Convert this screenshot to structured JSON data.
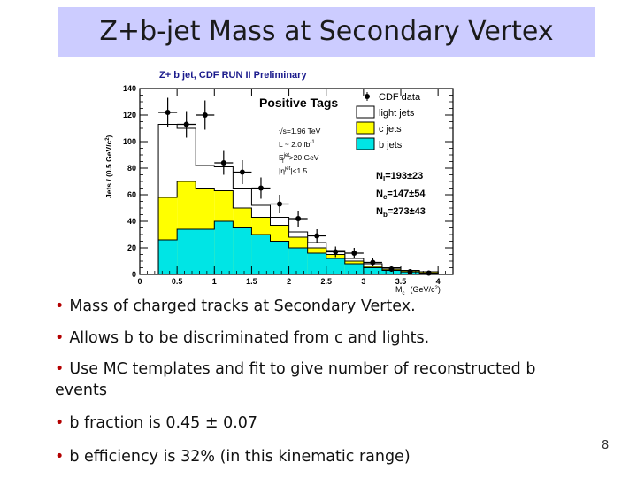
{
  "slide": {
    "title": "Z+b-jet Mass at Secondary Vertex",
    "page_number": "8",
    "bullet_color": "#b30000",
    "bullets": [
      "Mass of charged tracks at Secondary Vertex.",
      "Allows b to be discriminated from c and lights.",
      "Use MC templates and fit to give number of reconstructed b events",
      "b fraction is 0.45 ± 0.07",
      "b efficiency is 32% (in this kinematic range)"
    ]
  },
  "chart_data": {
    "type": "bar",
    "title": "Z+ b jet, CDF RUN II Preliminary",
    "panel_label": "Positive Tags",
    "xlabel": "M",
    "xlabel_sub": "c",
    "xlabel_unit": "(GeV/c",
    "xlabel_unit_sup": "2",
    "xlabel_unit_close": ")",
    "ylabel": "Jets / (0.5 GeV/c",
    "ylabel_sup": "2",
    "ylabel_close": ")",
    "xlim": [
      0,
      4.2
    ],
    "ylim": [
      0,
      140
    ],
    "xticks": [
      "0",
      "0.5",
      "1",
      "1.5",
      "2",
      "2.5",
      "3",
      "3.5",
      "4"
    ],
    "yticks": [
      "0",
      "20",
      "40",
      "60",
      "80",
      "100",
      "120",
      "140"
    ],
    "bin_edges": [
      0.25,
      0.5,
      0.75,
      1.0,
      1.25,
      1.5,
      1.75,
      2.0,
      2.25,
      2.5,
      2.75,
      3.0,
      3.25,
      3.5,
      3.75,
      4.0
    ],
    "series": [
      {
        "name": "light jets",
        "color": "#ffffff",
        "values": [
          113,
          110,
          82,
          81,
          65,
          52,
          43,
          32,
          24,
          18,
          12,
          8,
          5,
          3,
          2
        ]
      },
      {
        "name": "c jets",
        "color": "#ffff00",
        "values": [
          58,
          70,
          65,
          63,
          50,
          43,
          37,
          28,
          20,
          15,
          10,
          6,
          4,
          3,
          2
        ]
      },
      {
        "name": "b jets",
        "color": "#00e5e5",
        "values": [
          26,
          34,
          34,
          40,
          35,
          30,
          25,
          20,
          16,
          12,
          8,
          5,
          3,
          2,
          1
        ]
      }
    ],
    "data_points": {
      "name": "CDF data",
      "x": [
        0.375,
        0.625,
        0.875,
        1.125,
        1.375,
        1.625,
        1.875,
        2.125,
        2.375,
        2.625,
        2.875,
        3.125,
        3.375,
        3.625,
        3.875
      ],
      "y": [
        122,
        113,
        120,
        84,
        77,
        65,
        53,
        42,
        29,
        17,
        16,
        9,
        4,
        2,
        1
      ],
      "err": [
        11,
        10,
        11,
        9,
        9,
        8,
        7,
        6,
        5,
        4,
        4,
        3,
        2,
        1.5,
        1
      ]
    },
    "annotations": [
      "√s=1.96 TeV",
      "L ~ 2.0 fb",
      "-1",
      "E",
      "jet",
      "T",
      ">20 GeV",
      "|η",
      "jet",
      "|<1.5"
    ],
    "yields": [
      {
        "label": "N",
        "sub": "l",
        "value": "=193±23"
      },
      {
        "label": "N",
        "sub": "c",
        "value": "=147±54"
      },
      {
        "label": "N",
        "sub": "b",
        "value": "=273±43"
      }
    ],
    "grid": false,
    "legend_position": "top-right"
  }
}
